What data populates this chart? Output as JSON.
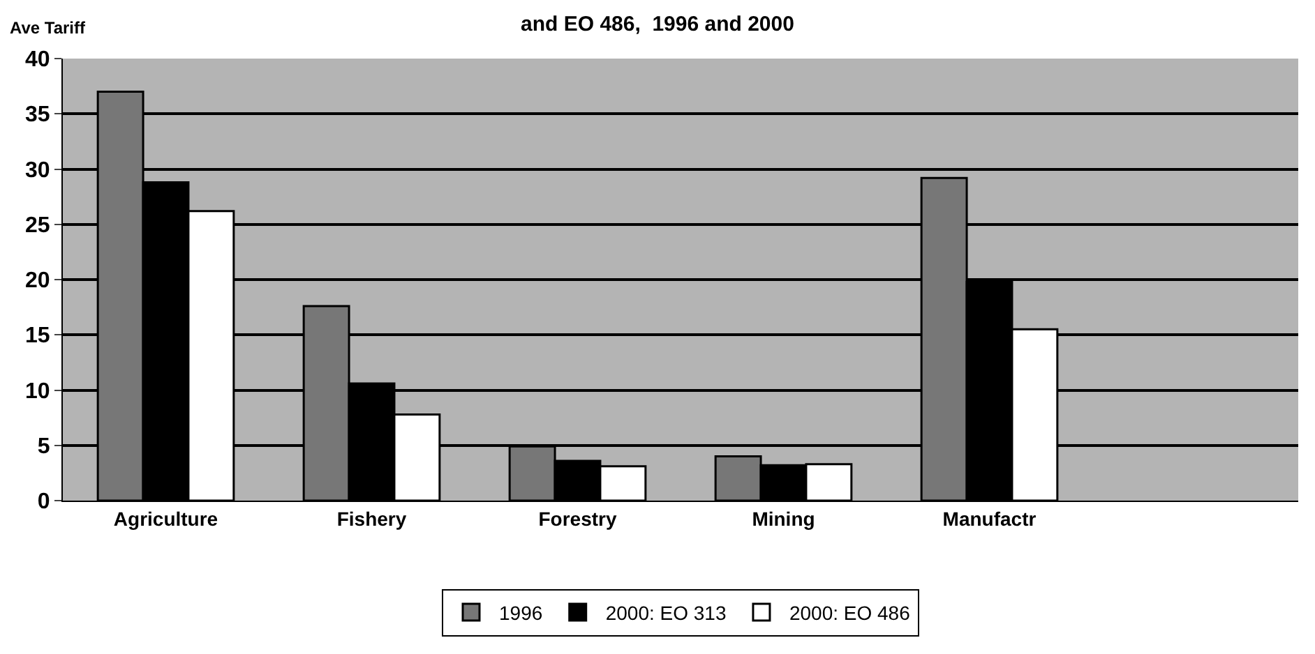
{
  "chart_data": {
    "type": "bar",
    "title": "and EO 486,  1996 and 2000",
    "ylabel": "Ave Tariff",
    "categories": [
      "Agriculture",
      "Fishery",
      "Forestry",
      "Mining",
      "Manufactr",
      null
    ],
    "series": [
      {
        "name": "1996",
        "color": "#777777",
        "values": [
          37.0,
          17.6,
          4.9,
          4.0,
          29.2,
          null
        ]
      },
      {
        "name": "2000: EO 313",
        "color": "#000000",
        "values": [
          28.8,
          10.6,
          3.6,
          3.2,
          19.8,
          null
        ]
      },
      {
        "name": "2000: EO 486",
        "color": "#ffffff",
        "values": [
          26.2,
          7.8,
          3.1,
          3.3,
          15.5,
          null
        ]
      }
    ],
    "ylim": [
      0,
      40
    ],
    "yticks": [
      0,
      5,
      10,
      15,
      20,
      25,
      30,
      35,
      40
    ],
    "grid": "y",
    "legend": "bottom"
  }
}
